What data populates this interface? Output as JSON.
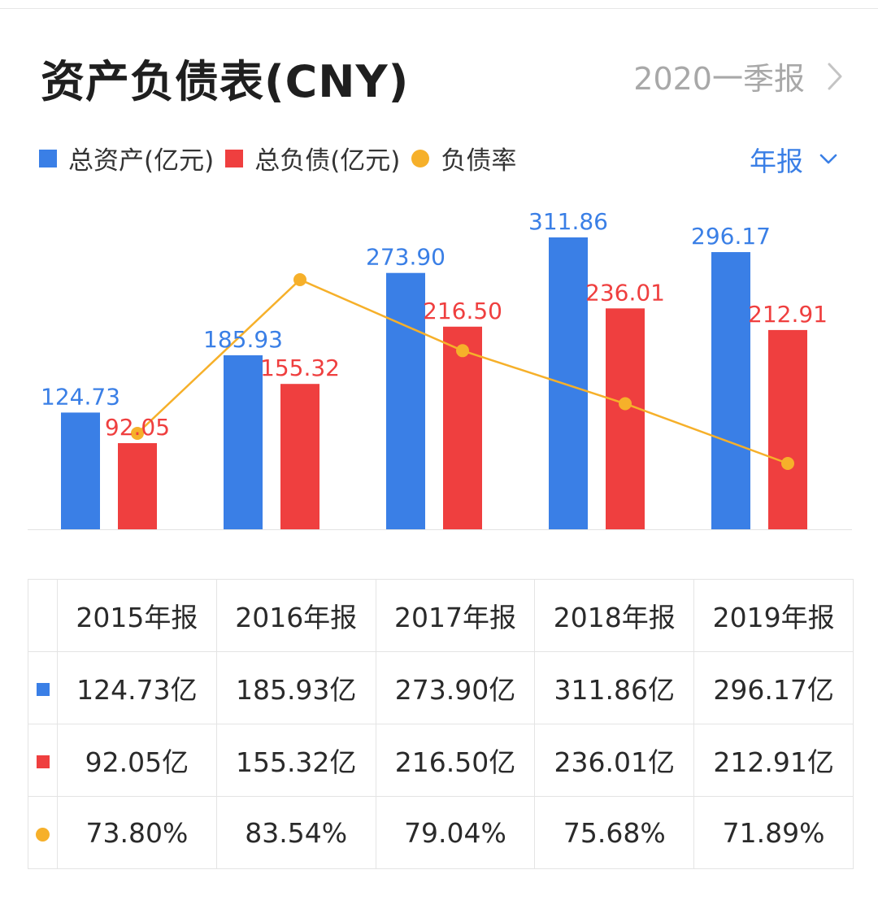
{
  "header": {
    "title": "资产负债表(CNY)",
    "period_link": "2020一季报"
  },
  "legend": {
    "items": [
      {
        "label": "总资产(亿元)",
        "color": "#3a7fe6",
        "marker": "square"
      },
      {
        "label": "总负债(亿元)",
        "color": "#ef3f3f",
        "marker": "square"
      },
      {
        "label": "负债率",
        "color": "#f6b02a",
        "marker": "dot"
      }
    ]
  },
  "period_select": {
    "label": "年报",
    "color": "#3a7fe6",
    "icon": "chevron-down-icon"
  },
  "chart_data": {
    "type": "bar",
    "categories": [
      "2015年报",
      "2016年报",
      "2017年报",
      "2018年报",
      "2019年报"
    ],
    "series": [
      {
        "name": "总资产(亿元)",
        "type": "bar",
        "color": "#3a7fe6",
        "values": [
          124.73,
          185.93,
          273.9,
          311.86,
          296.17
        ],
        "labels": [
          "124.73",
          "185.93",
          "273.90",
          "311.86",
          "296.17"
        ]
      },
      {
        "name": "总负债(亿元)",
        "type": "bar",
        "color": "#ef3f3f",
        "values": [
          92.05,
          155.32,
          216.5,
          236.01,
          212.91
        ],
        "labels": [
          "92.05",
          "155.32",
          "216.50",
          "236.01",
          "212.91"
        ]
      },
      {
        "name": "负债率",
        "type": "line",
        "color": "#f6b02a",
        "values": [
          73.8,
          83.54,
          79.04,
          75.68,
          71.89
        ],
        "unit": "%"
      }
    ],
    "ylim": [
      0,
      311.86
    ],
    "rate_ylim": [
      69.1,
      84.0
    ],
    "grid": false,
    "legend_position": "top-left"
  },
  "table": {
    "headers": [
      "2015年报",
      "2016年报",
      "2017年报",
      "2018年报",
      "2019年报"
    ],
    "rows": [
      {
        "marker": "square",
        "color": "#3a7fe6",
        "cells": [
          "124.73亿",
          "185.93亿",
          "273.90亿",
          "311.86亿",
          "296.17亿"
        ]
      },
      {
        "marker": "square",
        "color": "#ef3f3f",
        "cells": [
          "92.05亿",
          "155.32亿",
          "216.50亿",
          "236.01亿",
          "212.91亿"
        ]
      },
      {
        "marker": "dot",
        "color": "#f6b02a",
        "cells": [
          "73.80%",
          "83.54%",
          "79.04%",
          "75.68%",
          "71.89%"
        ]
      }
    ]
  }
}
